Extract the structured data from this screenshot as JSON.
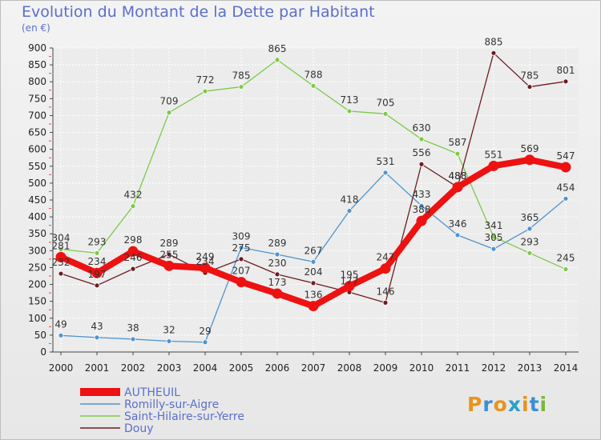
{
  "title": "Evolution du Montant de la Dette par Habitant",
  "unit_label": "(en €)",
  "logo": {
    "text": "Proxiti",
    "colors": [
      "#e8941a",
      "#3a8fd6",
      "#e8941a",
      "#2aa0c8",
      "#e8941a",
      "#3a8fd6",
      "#7ab83a"
    ]
  },
  "chart_data": {
    "type": "line",
    "title": "Evolution du Montant de la Dette par Habitant",
    "ylabel": "(en €)",
    "x": [
      "2000",
      "2001",
      "2002",
      "2003",
      "2004",
      "2005",
      "2006",
      "2007",
      "2008",
      "2009",
      "2010",
      "2011",
      "2012",
      "2013",
      "2014"
    ],
    "ylim": [
      0,
      900
    ],
    "yticks": [
      0,
      50,
      100,
      150,
      200,
      250,
      300,
      350,
      400,
      450,
      500,
      550,
      600,
      650,
      700,
      750,
      800,
      850,
      900
    ],
    "grid": true,
    "legend_placement": "bottom-left",
    "series": [
      {
        "name": "AUTHEUIL",
        "color": "#ee1111",
        "thick": true,
        "values": [
          281,
          234,
          298,
          255,
          249,
          207,
          173,
          136,
          195,
          247,
          388,
          488,
          551,
          569,
          547
        ]
      },
      {
        "name": "Romilly-sur-Aigre",
        "color": "#4f94d0",
        "thick": false,
        "values": [
          49,
          43,
          38,
          32,
          29,
          309,
          289,
          267,
          418,
          531,
          433,
          346,
          305,
          365,
          454
        ]
      },
      {
        "name": "Saint-Hilaire-sur-Yerre",
        "color": "#7ec94a",
        "thick": false,
        "values": [
          304,
          293,
          432,
          709,
          772,
          785,
          865,
          788,
          713,
          705,
          630,
          587,
          341,
          293,
          245
        ]
      },
      {
        "name": "Douy",
        "color": "#6e1c22",
        "thick": false,
        "values": [
          232,
          197,
          246,
          289,
          234,
          275,
          230,
          204,
          177,
          146,
          556,
          488,
          885,
          785,
          801
        ]
      }
    ]
  }
}
